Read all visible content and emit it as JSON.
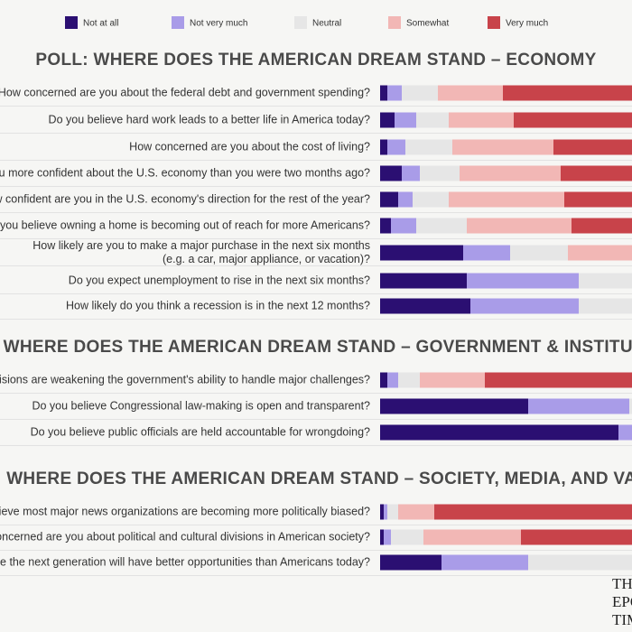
{
  "chart_data": [
    {
      "type": "bar",
      "orientation": "horizontal",
      "stacked": true,
      "title": "POLL: WHERE DOES THE AMERICAN DREAM STAND – ECONOMY",
      "categories": [
        [
          "How concerned are you about the federal debt and government spending?"
        ],
        [
          "Do you believe hard work leads to a better life in America today?"
        ],
        [
          "How concerned are you about the cost of living?"
        ],
        [
          "Are you more confident about the U.S. economy than you were two months ago?"
        ],
        [
          "How confident are you in the U.S. economy's direction for the rest of the year?"
        ],
        [
          "Do you believe owning a home is becoming out of reach for more Americans?"
        ],
        [
          "How likely are you to make a major purchase in the next six months",
          "(e.g. a car, major appliance, or vacation)?"
        ],
        [
          "Do you expect unemployment to rise in the next six months?"
        ],
        [
          "How likely do you think a recession is in the next 12 months?"
        ]
      ],
      "series": [
        {
          "name": "Not at all",
          "color": "#2b0f72",
          "values": [
            2,
            4,
            2,
            6,
            5,
            3,
            23,
            24,
            25
          ]
        },
        {
          "name": "Not very much",
          "color": "#a99ce8",
          "values": [
            4,
            6,
            5,
            5,
            4,
            7,
            13,
            31,
            30
          ]
        },
        {
          "name": "Neutral",
          "color": "#e6e6e6",
          "values": [
            10,
            9,
            13,
            11,
            10,
            14,
            16,
            25,
            25
          ]
        },
        {
          "name": "Somewhat",
          "color": "#f2b7b5",
          "values": [
            18,
            18,
            28,
            28,
            32,
            29,
            30,
            14,
            13
          ]
        },
        {
          "name": "Very much",
          "color": "#c8434a",
          "values": [
            66,
            63,
            52,
            50,
            49,
            47,
            18,
            6,
            7
          ]
        }
      ]
    },
    {
      "type": "bar",
      "orientation": "horizontal",
      "stacked": true,
      "title": "POLL: WHERE DOES THE AMERICAN DREAM STAND – GOVERNMENT & INSTITUTIONS",
      "categories": [
        [
          "Do you believe political divisions are weakening the government's ability to handle major challenges?"
        ],
        [
          "Do you believe Congressional law-making is open and transparent?"
        ],
        [
          "Do you believe public officials are held accountable for wrongdoing?"
        ]
      ],
      "series": [
        {
          "values": [
            2,
            41,
            66
          ]
        },
        {
          "values": [
            3,
            28,
            14
          ]
        },
        {
          "values": [
            6,
            20,
            12
          ]
        },
        {
          "values": [
            18,
            7,
            5
          ]
        },
        {
          "values": [
            71,
            4,
            3
          ]
        }
      ]
    },
    {
      "type": "bar",
      "orientation": "horizontal",
      "stacked": true,
      "title": "POLL: WHERE DOES THE AMERICAN DREAM STAND – SOCIETY, MEDIA, AND VALUES",
      "categories": [
        [
          "Do you believe most major news organizations are becoming more politically biased?"
        ],
        [
          "How concerned are you about political and cultural divisions in American society?"
        ],
        [
          "Do you believe the next generation will have better opportunities than Americans today?"
        ]
      ],
      "series": [
        {
          "values": [
            1,
            1,
            17
          ]
        },
        {
          "values": [
            1,
            2,
            24
          ]
        },
        {
          "values": [
            3,
            9,
            35
          ]
        },
        {
          "values": [
            10,
            27,
            16
          ]
        },
        {
          "values": [
            85,
            61,
            8
          ]
        }
      ]
    }
  ],
  "logo": [
    "THE",
    "EPOCH",
    "TIMES"
  ]
}
